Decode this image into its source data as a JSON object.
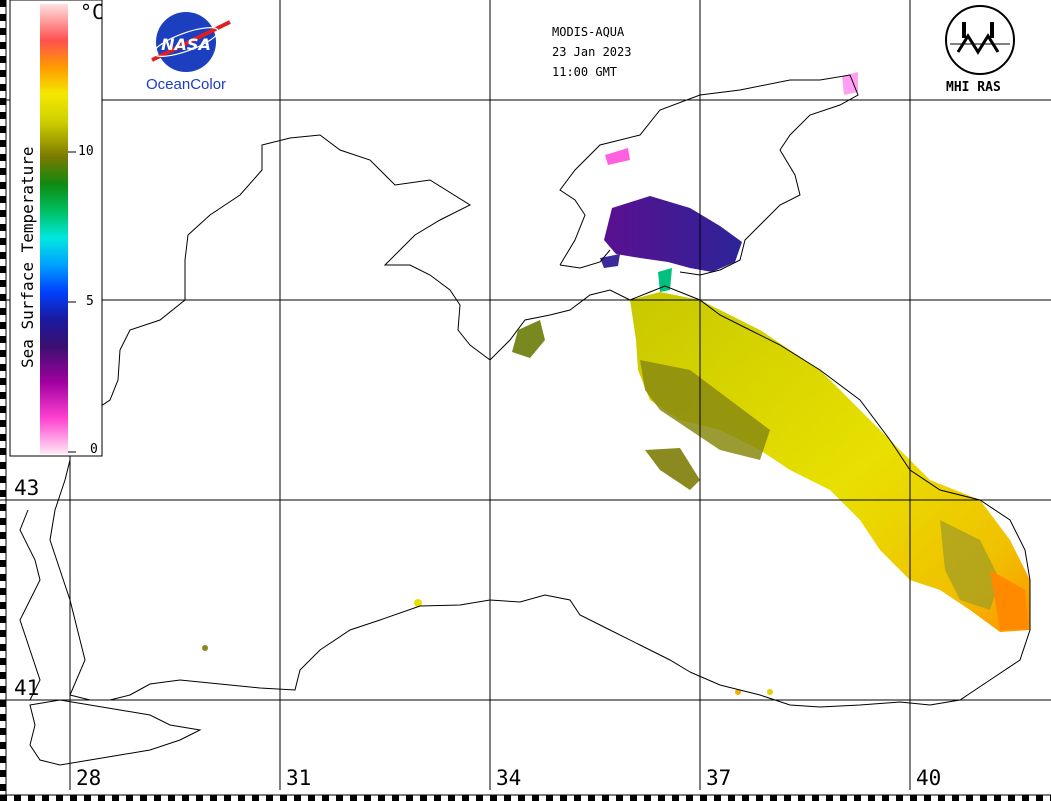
{
  "header": {
    "sensor": "MODIS-AQUA",
    "date": "23 Jan 2023",
    "time": "11:00 GMT"
  },
  "logos": {
    "nasa_text": "NASA",
    "oceancolor": "OceanColor",
    "mhi": "MHI RAS"
  },
  "colorbar": {
    "title": "Sea Surface Temperature",
    "unit": "°C",
    "ticks": [
      "10",
      "5",
      "0"
    ],
    "range": [
      0,
      15
    ],
    "colors": [
      "#ffe0f0",
      "#ff4ec8",
      "#b000b0",
      "#4b1070",
      "#2a1aa0",
      "#0000ff",
      "#0090ff",
      "#00e0e0",
      "#00d070",
      "#109010",
      "#808000",
      "#c8c800",
      "#f0f000",
      "#ffc000",
      "#ff7000",
      "#ff4040",
      "#ff9090",
      "#ffd8d8"
    ]
  },
  "axes": {
    "latitude_labels": [
      "43",
      "41"
    ],
    "longitude_labels": [
      "28",
      "31",
      "34",
      "37",
      "40"
    ]
  }
}
